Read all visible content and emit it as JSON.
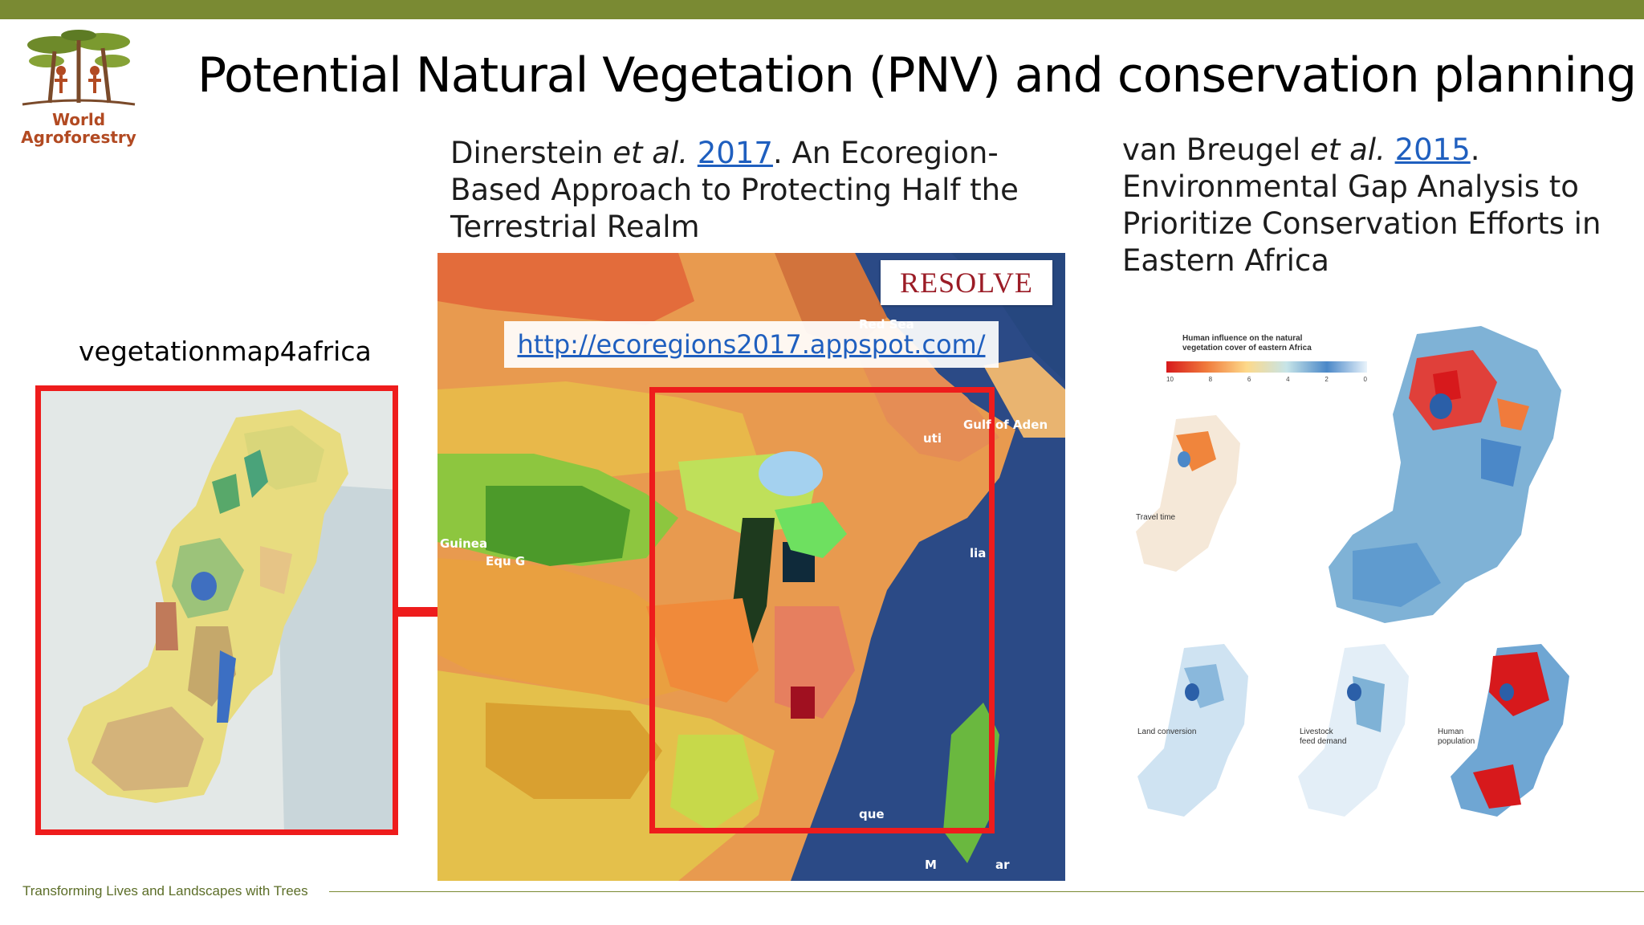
{
  "header": {
    "bar_color": "#7a8a33"
  },
  "logo": {
    "line1": "World",
    "line2": "Agroforestry",
    "icon": "tree-people-logo"
  },
  "title": "Potential Natural Vegetation (PNV) and conservation planning",
  "ref_left": {
    "authors": "Dinerstein",
    "etal": "et al.",
    "year": "2017",
    "text": ". An Ecoregion-Based Approach to Protecting Half the Terrestrial Realm"
  },
  "ref_right": {
    "authors": "van Breugel",
    "etal": "et al.",
    "year": "2015",
    "text": ". Environmental Gap Analysis to Prioritize Conservation Efforts in Eastern Africa"
  },
  "left_map": {
    "label": "vegetationmap4africa"
  },
  "center_map": {
    "brand": "RESOLVE",
    "url": "http://ecoregions2017.appspot.com/",
    "place_labels": [
      "Gulf of Aden",
      "Red Sea",
      "Guinea",
      "Equ G",
      "uti",
      "lia",
      "que",
      "M",
      "ar"
    ]
  },
  "right_panel": {
    "legend_title": "Human influence on the natural vegetation cover of eastern Africa",
    "legend_ticks": [
      "10",
      "8",
      "6",
      "4",
      "2",
      "0"
    ],
    "labels": {
      "travel": "Travel time",
      "land": "Land conversion",
      "livestock": "Livestock feed demand",
      "human": "Human population"
    }
  },
  "footer": {
    "tagline": "Transforming Lives and Landscapes with Trees"
  },
  "colors": {
    "accent_red": "#ee1c1c",
    "link_blue": "#1f5fbf",
    "olive": "#7a8a33"
  }
}
